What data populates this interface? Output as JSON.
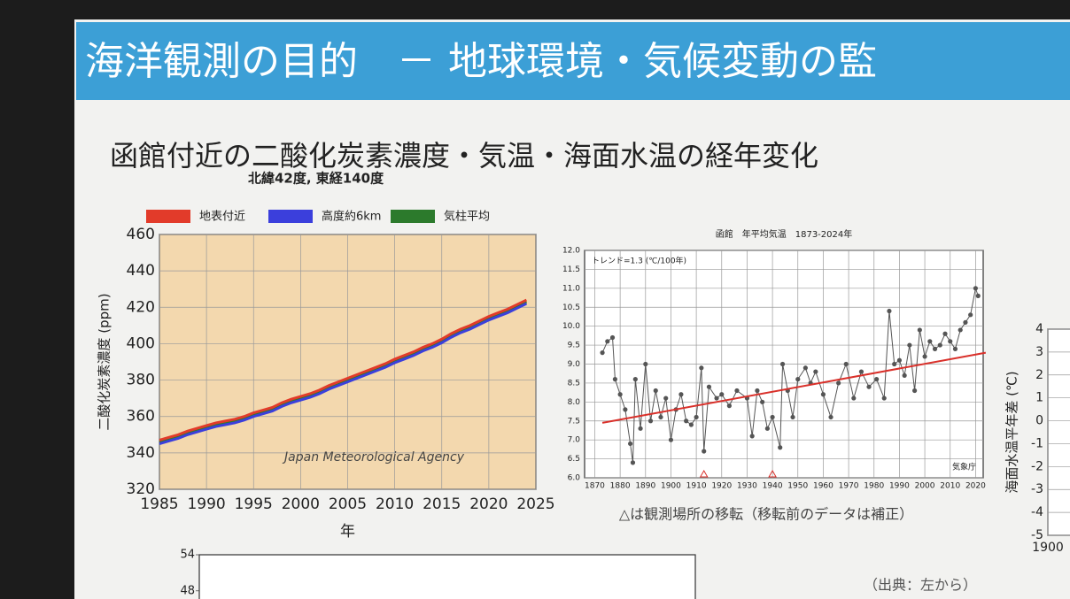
{
  "slide": {
    "title": "海洋観測の目的　－ 地球環境・気候変動の監",
    "heading": "函館付近の二酸化炭素濃度・気温・海面水温の経年変化",
    "location": "北緯42度, 東経140度",
    "source": "（出典：左から）"
  },
  "chart_data": [
    {
      "type": "line",
      "ylabel": "二酸化炭素濃度 (ppm)",
      "xlabel": "年",
      "annotation": "Japan Meteorological Agency",
      "x": [
        1985,
        1986,
        1987,
        1988,
        1989,
        1990,
        1991,
        1992,
        1993,
        1994,
        1995,
        1996,
        1997,
        1998,
        1999,
        2000,
        2001,
        2002,
        2003,
        2004,
        2005,
        2006,
        2007,
        2008,
        2009,
        2010,
        2011,
        2012,
        2013,
        2014,
        2015,
        2016,
        2017,
        2018,
        2019,
        2020,
        2021,
        2022,
        2023,
        2024
      ],
      "series": [
        {
          "name": "地表付近",
          "color": "#e23b2a",
          "values": [
            347,
            348.5,
            350,
            352,
            353.5,
            355,
            356.5,
            357.5,
            358.5,
            360,
            362,
            363.5,
            365,
            367.5,
            369.5,
            371,
            372.5,
            374.5,
            377,
            379,
            381,
            383,
            385,
            387,
            389,
            391.5,
            393.5,
            395.5,
            398,
            400,
            402.5,
            405.5,
            408,
            410,
            412.5,
            415,
            417,
            419,
            421.5,
            424
          ]
        },
        {
          "name": "高度約6km",
          "color": "#3b3fdc",
          "values": [
            345,
            346.5,
            348,
            350,
            351.5,
            353,
            354.5,
            355.5,
            356.5,
            358,
            360,
            361.5,
            363,
            365.5,
            367.5,
            369,
            370.5,
            372.5,
            375,
            377,
            379,
            381,
            383,
            385,
            387,
            389.5,
            391.5,
            393.5,
            396,
            398,
            400.5,
            403.5,
            406,
            408,
            410.5,
            413,
            415,
            417,
            419.5,
            422
          ]
        },
        {
          "name": "気柱平均",
          "color": "#2c7a2c",
          "values": [
            346,
            347.5,
            349,
            351,
            352.5,
            354,
            355.5,
            356.5,
            357.5,
            359,
            361,
            362.5,
            364,
            366.5,
            368.5,
            370,
            371.5,
            373.5,
            376,
            378,
            380,
            382,
            384,
            386,
            388,
            390.5,
            392.5,
            394.5,
            397,
            399,
            401.5,
            404.5,
            407,
            409,
            411.5,
            414,
            416,
            418,
            420.5,
            423
          ]
        }
      ],
      "xlim": [
        1985,
        2025
      ],
      "ylim": [
        320,
        460
      ],
      "xticks": [
        1985,
        1990,
        1995,
        2000,
        2005,
        2010,
        2015,
        2020,
        2025
      ],
      "yticks": [
        320,
        340,
        360,
        380,
        400,
        420,
        440,
        460
      ],
      "grid": true,
      "background": "#f3d8ae"
    },
    {
      "type": "line",
      "title": "函館　年平均気温　1873-2024年",
      "annotations": [
        "トレンド=1.3 (℃/100年)",
        "気象庁"
      ],
      "caption": "△は観測場所の移転（移転前のデータは補正）",
      "x": [
        1873,
        1875,
        1877,
        1878,
        1880,
        1882,
        1884,
        1885,
        1886,
        1888,
        1890,
        1892,
        1894,
        1896,
        1898,
        1900,
        1902,
        1904,
        1906,
        1908,
        1910,
        1912,
        1913,
        1915,
        1918,
        1920,
        1923,
        1926,
        1930,
        1932,
        1934,
        1936,
        1938,
        1940,
        1943,
        1944,
        1946,
        1948,
        1950,
        1953,
        1955,
        1957,
        1960,
        1963,
        1966,
        1969,
        1972,
        1975,
        1978,
        1981,
        1984,
        1986,
        1988,
        1990,
        1992,
        1994,
        1996,
        1998,
        2000,
        2002,
        2004,
        2006,
        2008,
        2010,
        2012,
        2014,
        2016,
        2018,
        2020,
        2021
      ],
      "series": [
        {
          "color": "#555555",
          "values": [
            9.3,
            9.6,
            9.7,
            8.6,
            8.2,
            7.8,
            6.9,
            6.4,
            8.6,
            7.3,
            9.0,
            7.5,
            8.3,
            7.6,
            8.1,
            7.0,
            7.8,
            8.2,
            7.5,
            7.4,
            7.6,
            8.9,
            6.7,
            8.4,
            8.1,
            8.2,
            7.9,
            8.3,
            8.1,
            7.1,
            8.3,
            8.0,
            7.3,
            7.6,
            6.8,
            9.0,
            8.3,
            7.6,
            8.6,
            8.9,
            8.5,
            8.8,
            8.2,
            7.6,
            8.5,
            9.0,
            8.1,
            8.8,
            8.4,
            8.6,
            8.1,
            10.4,
            9.0,
            9.1,
            8.7,
            9.5,
            8.3,
            9.9,
            9.2,
            9.6,
            9.4,
            9.5,
            9.8,
            9.6,
            9.4,
            9.9,
            10.1,
            10.3,
            11.0,
            10.8
          ]
        }
      ],
      "markers": true,
      "trend": {
        "x": [
          1873,
          2024
        ],
        "values": [
          7.45,
          9.3
        ],
        "color": "#d9302a"
      },
      "relocations": [
        1913,
        1940
      ],
      "xlim": [
        1866,
        2023
      ],
      "ylim": [
        6,
        12
      ],
      "xticks": [
        1870,
        1880,
        1890,
        1900,
        1910,
        1920,
        1930,
        1940,
        1950,
        1960,
        1970,
        1980,
        1990,
        2000,
        2010,
        2020
      ],
      "yticks": [
        {
          "value": 6,
          "label": "6.0"
        },
        6.5,
        {
          "value": 7,
          "label": "7.0"
        },
        7.5,
        {
          "value": 8,
          "label": "8.0"
        },
        8.5,
        {
          "value": 9,
          "label": "9.0"
        },
        9.5,
        {
          "value": 10,
          "label": "10.0"
        },
        10.5,
        {
          "value": 11,
          "label": "11.0"
        },
        11.5,
        {
          "value": 12,
          "label": "12.0"
        }
      ],
      "grid": true,
      "background": "#ffffff"
    },
    {
      "type": "line",
      "ylabel": "海面水温平年差 (℃)",
      "xlim": [
        1900,
        1903
      ],
      "ylim": [
        -5,
        4
      ],
      "xticks": [
        1900
      ],
      "yticks": [
        -5,
        -4,
        -3,
        -2,
        -1,
        0,
        1,
        2,
        3,
        4
      ],
      "grid": true,
      "background": "#ffffff"
    },
    {
      "type": "map",
      "ylim": [
        44,
        54
      ],
      "yticks": [
        54,
        48
      ],
      "background": "#ffffff"
    }
  ]
}
